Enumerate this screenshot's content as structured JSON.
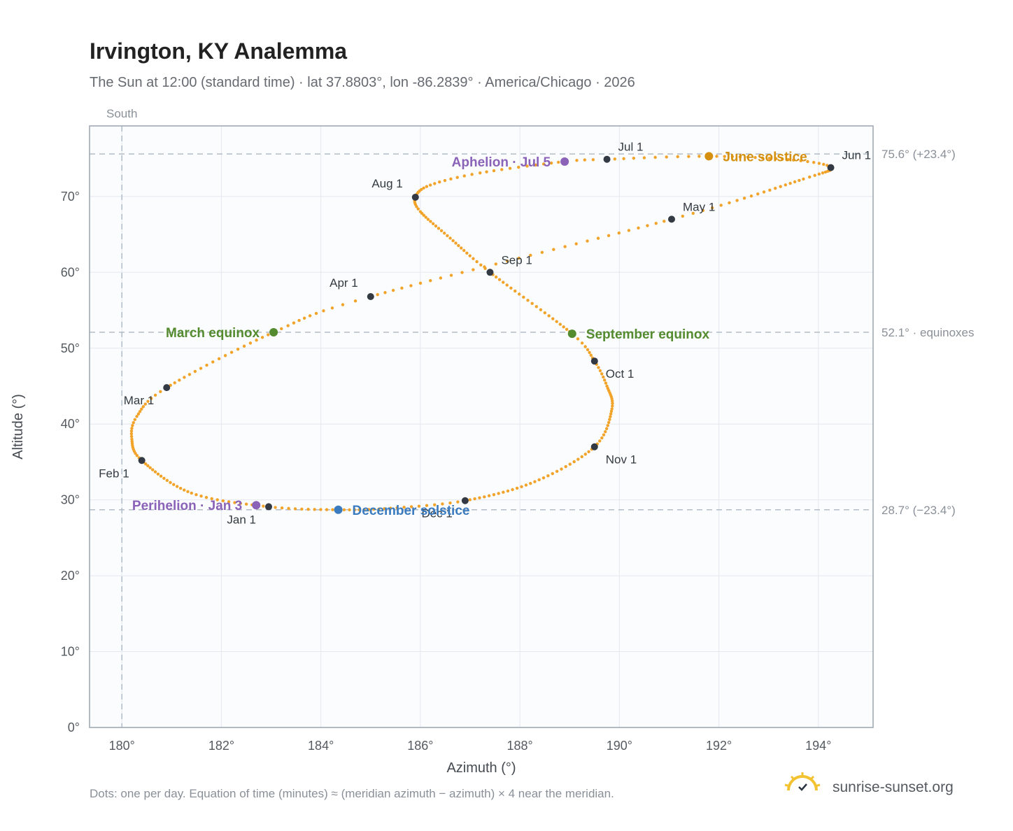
{
  "header": {
    "title": "Irvington, KY Analemma",
    "subtitle": "The Sun at 12:00 (standard time) · lat 37.8803°, lon -86.2839° · America/Chicago · 2026"
  },
  "footer": {
    "note": "Dots: one per day. Equation of time (minutes) ≈ (meridian azimuth − azimuth) × 4 near the meridian.",
    "brand": "sunrise-sunset.org"
  },
  "colors": {
    "curve": "#f2a32a",
    "month_dot": "#333a44",
    "march_equinox": "#558b2f",
    "september_equinox": "#558b2f",
    "june_solstice": "#d4900e",
    "december_solstice": "#3a7bbf",
    "aphelion": "#8a63b8",
    "perihelion": "#8a63b8",
    "plot_bg": "#fafcfe",
    "grid": "#e4e8ee",
    "frame": "#9aa4b0"
  },
  "chart_data": {
    "type": "scatter",
    "xlabel": "Azimuth (°)",
    "ylabel": "Altitude (°)",
    "xlim": [
      179.35,
      195.1
    ],
    "ylim": [
      0,
      79.3
    ],
    "x_ticks": [
      {
        "value": 180,
        "label": "180°"
      },
      {
        "value": 182,
        "label": "182°"
      },
      {
        "value": 184,
        "label": "184°"
      },
      {
        "value": 186,
        "label": "186°"
      },
      {
        "value": 188,
        "label": "188°"
      },
      {
        "value": 190,
        "label": "190°"
      },
      {
        "value": 192,
        "label": "192°"
      },
      {
        "value": 194,
        "label": "194°"
      }
    ],
    "y_ticks": [
      {
        "value": 0,
        "label": "0°"
      },
      {
        "value": 10,
        "label": "10°"
      },
      {
        "value": 20,
        "label": "20°"
      },
      {
        "value": 30,
        "label": "30°"
      },
      {
        "value": 40,
        "label": "40°"
      },
      {
        "value": 50,
        "label": "50°"
      },
      {
        "value": 60,
        "label": "60°"
      },
      {
        "value": 70,
        "label": "70°"
      }
    ],
    "grid": true,
    "south_line": {
      "azimuth": 180,
      "label": "South"
    },
    "reference_lines": [
      {
        "altitude": 75.6,
        "label": "75.6° (+23.4°)"
      },
      {
        "altitude": 52.1,
        "label": "52.1° · equinoxes"
      },
      {
        "altitude": 28.7,
        "label": "28.7° (−23.4°)"
      }
    ],
    "daily_positions_keypoints": [
      {
        "day": 1,
        "azimuth": 182.95,
        "altitude": 29.1
      },
      {
        "day": 15,
        "azimuth": 181.4,
        "altitude": 30.9
      },
      {
        "day": 32,
        "azimuth": 180.4,
        "altitude": 35.2
      },
      {
        "day": 42,
        "azimuth": 180.2,
        "altitude": 38.0
      },
      {
        "day": 50,
        "azimuth": 180.3,
        "altitude": 41.0
      },
      {
        "day": 60,
        "azimuth": 180.9,
        "altitude": 44.8
      },
      {
        "day": 79,
        "azimuth": 183.05,
        "altitude": 52.1
      },
      {
        "day": 91,
        "azimuth": 185.0,
        "altitude": 56.8
      },
      {
        "day": 121,
        "azimuth": 191.05,
        "altitude": 67.0
      },
      {
        "day": 140,
        "azimuth": 193.7,
        "altitude": 72.3
      },
      {
        "day": 152,
        "azimuth": 194.25,
        "altitude": 73.8
      },
      {
        "day": 160,
        "azimuth": 193.5,
        "altitude": 74.8
      },
      {
        "day": 172,
        "azimuth": 191.8,
        "altitude": 75.3
      },
      {
        "day": 182,
        "azimuth": 189.75,
        "altitude": 74.9
      },
      {
        "day": 186,
        "azimuth": 188.9,
        "altitude": 74.6
      },
      {
        "day": 197,
        "azimuth": 187.2,
        "altitude": 73.1
      },
      {
        "day": 205,
        "azimuth": 186.2,
        "altitude": 71.5
      },
      {
        "day": 213,
        "azimuth": 185.9,
        "altitude": 69.9
      },
      {
        "day": 220,
        "azimuth": 186.0,
        "altitude": 68.0
      },
      {
        "day": 232,
        "azimuth": 186.6,
        "altitude": 64.5
      },
      {
        "day": 244,
        "azimuth": 187.4,
        "altitude": 60.0
      },
      {
        "day": 266,
        "azimuth": 189.05,
        "altitude": 51.9
      },
      {
        "day": 274,
        "azimuth": 189.5,
        "altitude": 48.3
      },
      {
        "day": 282,
        "azimuth": 189.75,
        "altitude": 45.0
      },
      {
        "day": 292,
        "azimuth": 189.85,
        "altitude": 42.0
      },
      {
        "day": 305,
        "azimuth": 189.5,
        "altitude": 37.0
      },
      {
        "day": 320,
        "azimuth": 188.3,
        "altitude": 32.4
      },
      {
        "day": 335,
        "azimuth": 186.9,
        "altitude": 29.9
      },
      {
        "day": 345,
        "azimuth": 185.4,
        "altitude": 28.9
      },
      {
        "day": 355,
        "azimuth": 184.35,
        "altitude": 28.7
      },
      {
        "day": 366,
        "azimuth": 182.95,
        "altitude": 29.1
      }
    ],
    "month_markers": [
      {
        "label": "Jan 1",
        "azimuth": 182.95,
        "altitude": 29.1,
        "label_pos": "below-left"
      },
      {
        "label": "Feb 1",
        "azimuth": 180.4,
        "altitude": 35.2,
        "label_pos": "below-left"
      },
      {
        "label": "Mar 1",
        "azimuth": 180.9,
        "altitude": 44.8,
        "label_pos": "below-left"
      },
      {
        "label": "Apr 1",
        "azimuth": 185.0,
        "altitude": 56.8,
        "label_pos": "above-left"
      },
      {
        "label": "May 1",
        "azimuth": 191.05,
        "altitude": 67.0,
        "label_pos": "above-right"
      },
      {
        "label": "Jun 1",
        "azimuth": 194.25,
        "altitude": 73.8,
        "label_pos": "above-right"
      },
      {
        "label": "Jul 1",
        "azimuth": 189.75,
        "altitude": 74.9,
        "label_pos": "above-right"
      },
      {
        "label": "Aug 1",
        "azimuth": 185.9,
        "altitude": 69.9,
        "label_pos": "above-left"
      },
      {
        "label": "Sep 1",
        "azimuth": 187.4,
        "altitude": 60.0,
        "label_pos": "above-right"
      },
      {
        "label": "Oct 1",
        "azimuth": 189.5,
        "altitude": 48.3,
        "label_pos": "below-right"
      },
      {
        "label": "Nov 1",
        "azimuth": 189.5,
        "altitude": 37.0,
        "label_pos": "below-right"
      },
      {
        "label": "Dec 1",
        "azimuth": 186.9,
        "altitude": 29.9,
        "label_pos": "below-left"
      }
    ],
    "events": [
      {
        "label": "March equinox",
        "azimuth": 183.05,
        "altitude": 52.1,
        "color_key": "march_equinox",
        "side": "left"
      },
      {
        "label": "September equinox",
        "azimuth": 189.05,
        "altitude": 51.9,
        "color_key": "september_equinox",
        "side": "right"
      },
      {
        "label": "June solstice",
        "azimuth": 191.8,
        "altitude": 75.3,
        "color_key": "june_solstice",
        "side": "right"
      },
      {
        "label": "December solstice",
        "azimuth": 184.35,
        "altitude": 28.7,
        "color_key": "december_solstice",
        "side": "right"
      },
      {
        "label": "Aphelion · Jul 5",
        "azimuth": 188.9,
        "altitude": 74.6,
        "color_key": "aphelion",
        "side": "left"
      },
      {
        "label": "Perihelion · Jan 3",
        "azimuth": 182.7,
        "altitude": 29.3,
        "color_key": "perihelion",
        "side": "left"
      }
    ]
  }
}
